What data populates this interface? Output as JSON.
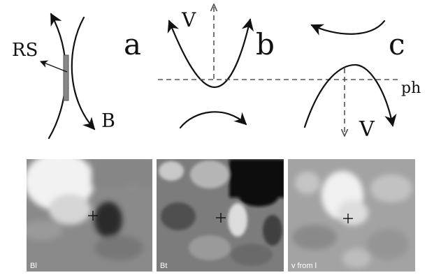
{
  "panels_top": [
    {
      "letter": "a",
      "labels": {
        "rs": "RS",
        "b": "B"
      }
    },
    {
      "letter": "b",
      "labels": {
        "v": "V"
      }
    },
    {
      "letter": "c",
      "labels": {
        "v": "V",
        "ph": "ph"
      }
    }
  ],
  "panels_bottom": [
    {
      "label": "Bl"
    },
    {
      "label": "Bt"
    },
    {
      "label": "v from l"
    }
  ],
  "colors": {
    "ink": "#111111",
    "dashed": "#555555",
    "panel_label": "#ffffff",
    "bar": "#888888"
  },
  "icons": [
    "crosshair-plus-icon"
  ]
}
